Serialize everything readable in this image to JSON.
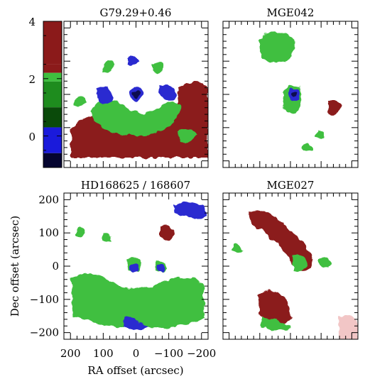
{
  "figure": {
    "colorbar": {
      "ticks": [
        "4",
        "2",
        "0"
      ],
      "tick_values": [
        4,
        2,
        0
      ],
      "range": [
        -1.1,
        4
      ],
      "bands": [
        {
          "from": 2.5,
          "to": 4.0,
          "color": "#8b1a1a"
        },
        {
          "from": 2.2,
          "to": 2.5,
          "color": "#8b1a1a"
        },
        {
          "from": 1.9,
          "to": 2.2,
          "color": "#3fbf3f"
        },
        {
          "from": 1.0,
          "to": 1.9,
          "color": "#1e8c1e"
        },
        {
          "from": 0.3,
          "to": 1.0,
          "color": "#0a4a0a"
        },
        {
          "from": -0.6,
          "to": 0.3,
          "color": "#1a1adb"
        },
        {
          "from": -1.1,
          "to": -0.6,
          "color": "#050530"
        }
      ]
    },
    "panels": [
      {
        "title": "G79.29+0.46"
      },
      {
        "title": "MGE042"
      },
      {
        "title": "HD168625 / 168607"
      },
      {
        "title": "MGE027"
      }
    ],
    "x_axis": {
      "label": "RA offset (arcsec)",
      "ticks": [
        200,
        100,
        0,
        -100,
        -200
      ],
      "tick_labels": [
        "200",
        "100",
        "0",
        "−100",
        "−200"
      ],
      "range": [
        220,
        -220
      ]
    },
    "y_axis": {
      "label": "Dec offset (arcsec)",
      "ticks": [
        200,
        100,
        0,
        -100,
        -200
      ],
      "tick_labels": [
        "200",
        "100",
        "0",
        "−100",
        "−200"
      ],
      "range": [
        -220,
        220
      ]
    },
    "colors": {
      "red": "#8b1a1a",
      "green": "#3fbf3f",
      "dark_green": "#1e8c1e",
      "blue": "#2b2bd0",
      "navy": "#0b0b50",
      "pink": "#f2c6c6"
    }
  }
}
